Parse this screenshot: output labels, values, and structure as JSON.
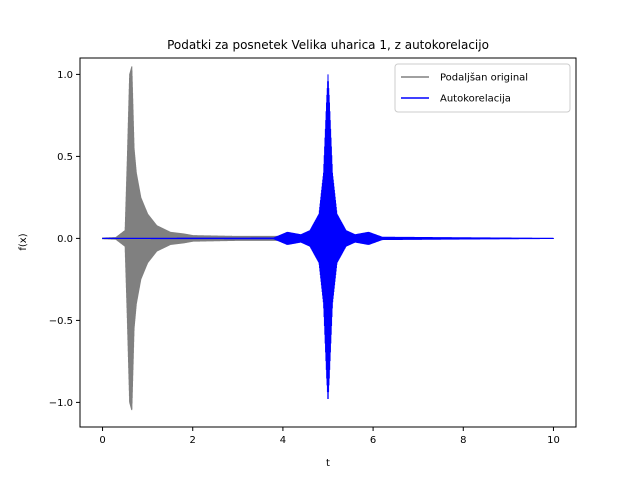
{
  "chart_data": {
    "type": "line",
    "title": "Podatki za posnetek Velika uharica 1, z autokorelacijo",
    "xlabel": "t",
    "ylabel": "f(x)",
    "xlim": [
      -0.5,
      10.5
    ],
    "ylim": [
      -1.15,
      1.1
    ],
    "xticks": [
      0,
      2,
      4,
      6,
      8,
      10
    ],
    "xtick_labels": [
      "0",
      "2",
      "4",
      "6",
      "8",
      "10"
    ],
    "yticks": [
      -1.0,
      -0.5,
      0.0,
      0.5,
      1.0
    ],
    "ytick_labels": [
      "−1.0",
      "−0.5",
      "0.0",
      "0.5",
      "1.0"
    ],
    "grid": false,
    "legend_position": "top-right",
    "series": [
      {
        "name": "Podaljšan original",
        "color": "#808080",
        "envelope": [
          [
            0.0,
            0.005
          ],
          [
            0.3,
            0.008
          ],
          [
            0.5,
            0.05
          ],
          [
            0.55,
            0.5
          ],
          [
            0.6,
            1.0
          ],
          [
            0.65,
            1.05
          ],
          [
            0.7,
            0.55
          ],
          [
            0.75,
            0.4
          ],
          [
            0.85,
            0.25
          ],
          [
            1.0,
            0.15
          ],
          [
            1.2,
            0.08
          ],
          [
            1.5,
            0.04
          ],
          [
            1.8,
            0.03
          ],
          [
            2.0,
            0.02
          ],
          [
            3.0,
            0.015
          ],
          [
            4.0,
            0.015
          ],
          [
            4.1,
            0.0
          ]
        ]
      },
      {
        "name": "Autokorelacija",
        "color": "#0000ff",
        "envelope": [
          [
            0.0,
            0.003
          ],
          [
            3.8,
            0.005
          ],
          [
            4.1,
            0.04
          ],
          [
            4.4,
            0.025
          ],
          [
            4.6,
            0.05
          ],
          [
            4.8,
            0.15
          ],
          [
            4.9,
            0.4
          ],
          [
            4.97,
            0.85
          ],
          [
            5.0,
            1.0
          ],
          [
            5.03,
            0.85
          ],
          [
            5.1,
            0.4
          ],
          [
            5.2,
            0.15
          ],
          [
            5.4,
            0.05
          ],
          [
            5.6,
            0.025
          ],
          [
            5.9,
            0.04
          ],
          [
            6.2,
            0.01
          ],
          [
            10.0,
            0.003
          ]
        ]
      }
    ]
  }
}
